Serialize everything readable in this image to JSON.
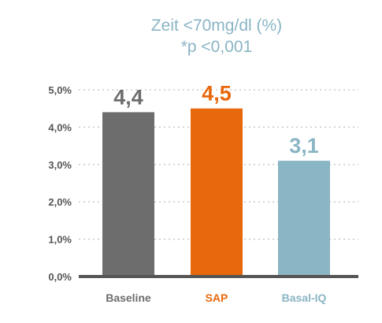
{
  "chart_data": {
    "type": "bar",
    "title": "Zeit <70mg/dl (%)",
    "subtitle": "*p <0,001",
    "categories": [
      "Baseline",
      "SAP",
      "Basal-IQ"
    ],
    "values": [
      4.4,
      4.5,
      3.1
    ],
    "value_labels": [
      "4,4",
      "4,5",
      "3,1"
    ],
    "bar_colors": [
      "#6d6d6d",
      "#e8680c",
      "#8ab5c4"
    ],
    "label_colors": [
      "#6d6d6d",
      "#e8680c",
      "#8ab5c4"
    ],
    "title_color": "#8ab5c4",
    "ylim": [
      0,
      5
    ],
    "y_ticks": [
      0,
      1,
      2,
      3,
      4,
      5
    ],
    "y_tick_labels": [
      "0,0%",
      "1,0%",
      "2,0%",
      "3,0%",
      "4,0%",
      "5,0%"
    ],
    "grid": true,
    "xlabel": "",
    "ylabel": ""
  }
}
